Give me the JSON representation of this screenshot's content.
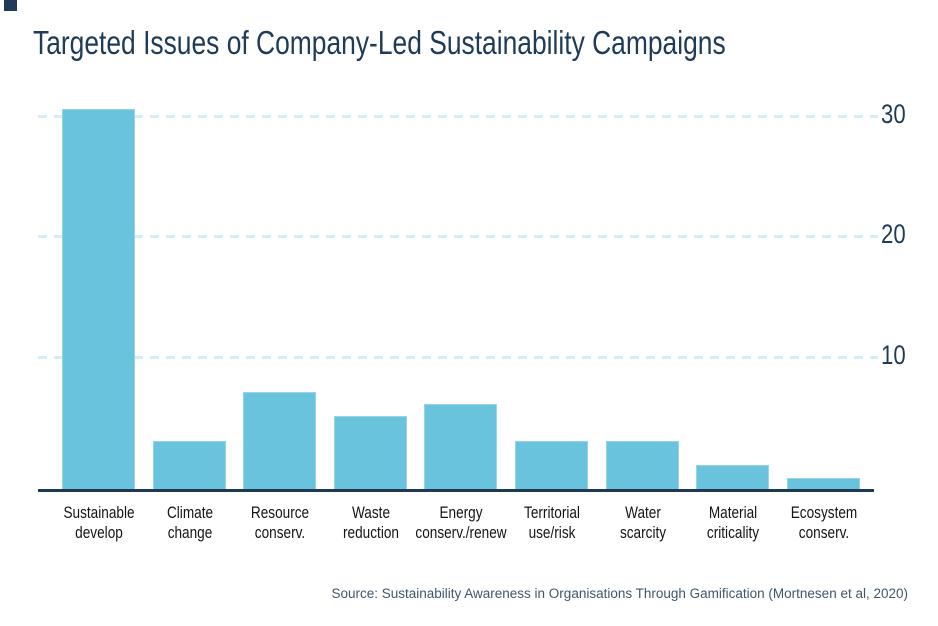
{
  "page": {
    "title": "Targeted Issues of Company-Led Sustainability Campaigns",
    "source": "Source: Sustainability Awareness in Organisations Through Gamification (Mortnesen et al, 2020)"
  },
  "colors": {
    "title_navy": "#1e3b58",
    "axis_navy": "#1d3a52",
    "bar_fill": "#69c3dd",
    "gridline_blue": "#d3ecf5",
    "category_label_text": "#141414",
    "source_text": "#42566b"
  },
  "icons": {
    "brand_square": "solid-navy-square"
  },
  "chart_data": {
    "type": "bar",
    "title": "Targeted Issues of Company-Led Sustainability Campaigns",
    "categories": [
      "Sustainable develop",
      "Climate change",
      "Resource conserv.",
      "Waste reduction",
      "Energy conserv./renew",
      "Territorial use/risk",
      "Water scarcity",
      "Material criticality",
      "Ecosystem conserv."
    ],
    "category_lines": [
      [
        "Sustainable",
        "develop"
      ],
      [
        "Climate",
        "change"
      ],
      [
        "Resource",
        "conserv."
      ],
      [
        "Waste",
        "reduction"
      ],
      [
        "Energy",
        "conserv./renew"
      ],
      [
        "Territorial",
        "use/risk"
      ],
      [
        "Water",
        "scarcity"
      ],
      [
        "Material",
        "criticality"
      ],
      [
        "Ecosystem",
        "conserv."
      ]
    ],
    "values": [
      31,
      4,
      8,
      6,
      7,
      4,
      4,
      2,
      1
    ],
    "y_ticks": [
      10,
      20,
      30
    ],
    "ylim": [
      0,
      32
    ],
    "xlabel": "",
    "ylabel": "",
    "grid": "horizontal-dashed",
    "tick_label_side": "right",
    "legend": "none",
    "source": "Source: Sustainability Awareness in Organisations Through Gamification (Mortnesen et al, 2020)"
  }
}
